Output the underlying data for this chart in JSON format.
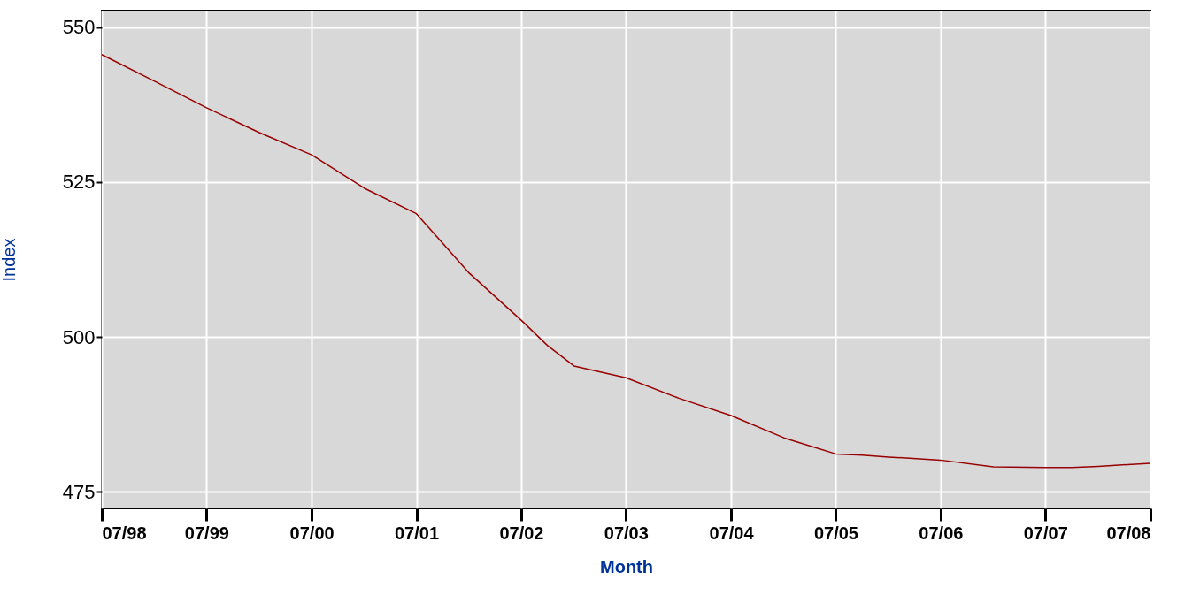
{
  "chart_data": {
    "type": "line",
    "xlabel": "Month",
    "ylabel": "Index",
    "x": [
      "1998-07",
      "1999-01",
      "1999-07",
      "2000-01",
      "2000-07",
      "2001-01",
      "2001-07",
      "2002-01",
      "2002-07",
      "2002-10",
      "2003-01",
      "2003-07",
      "2004-01",
      "2004-07",
      "2005-01",
      "2005-07",
      "2005-10",
      "2006-01",
      "2006-07",
      "2007-01",
      "2007-07",
      "2007-10",
      "2008-01",
      "2008-07"
    ],
    "series": [
      {
        "color": "#990000",
        "values": [
          545.6,
          541.3,
          537,
          533,
          529.4,
          524,
          519.9,
          510.3,
          502.7,
          498.6,
          495.3,
          493.4,
          490.1,
          487.3,
          483.7,
          481.1,
          480.9,
          480.6,
          480.1,
          479,
          478.9,
          478.9,
          479.1,
          479.6
        ]
      }
    ],
    "xlim": [
      "1998-07",
      "2008-07"
    ],
    "xticks": [
      {
        "value": "1998-07",
        "label": "07/98"
      },
      {
        "value": "1999-07",
        "label": "07/99"
      },
      {
        "value": "2000-07",
        "label": "07/00"
      },
      {
        "value": "2001-07",
        "label": "07/01"
      },
      {
        "value": "2002-07",
        "label": "07/02"
      },
      {
        "value": "2003-07",
        "label": "07/03"
      },
      {
        "value": "2004-07",
        "label": "07/04"
      },
      {
        "value": "2005-07",
        "label": "07/05"
      },
      {
        "value": "2006-07",
        "label": "07/06"
      },
      {
        "value": "2007-07",
        "label": "07/07"
      },
      {
        "value": "2008-07",
        "label": "07/08"
      }
    ],
    "ylim": [
      472.3,
      552.7
    ],
    "yticks": [
      475,
      500,
      525,
      550
    ],
    "grid": true
  }
}
